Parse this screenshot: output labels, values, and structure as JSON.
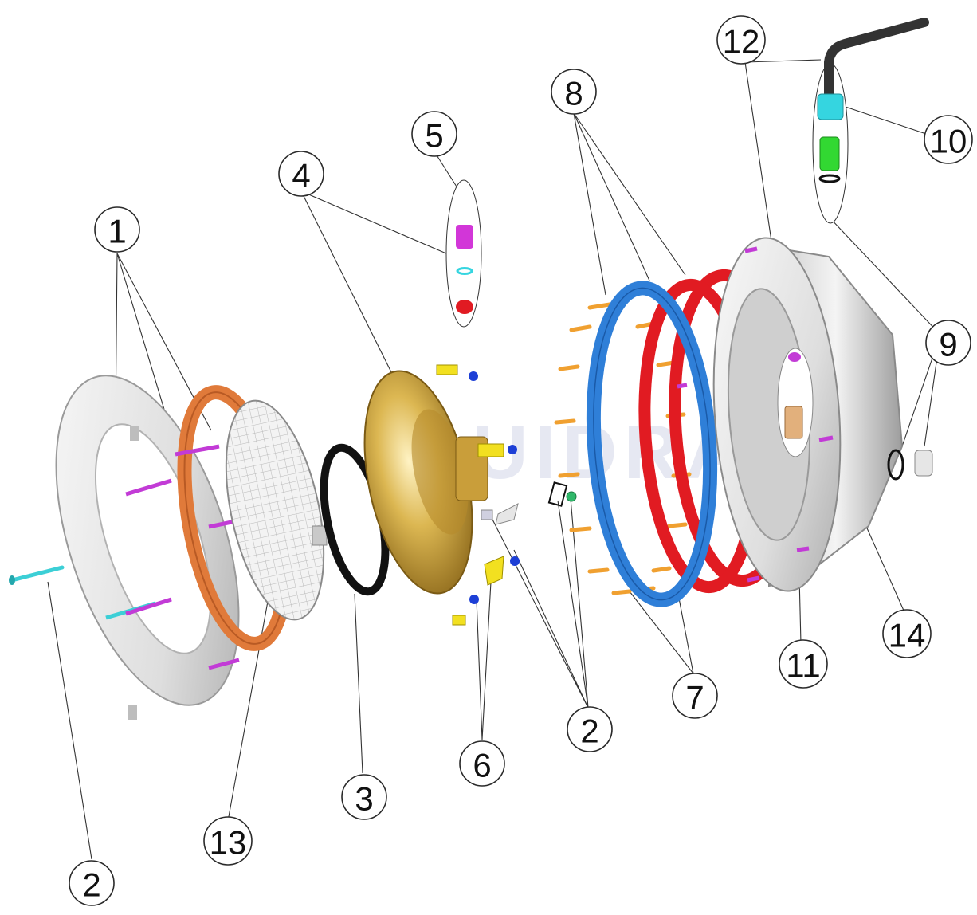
{
  "diagram": {
    "watermark": "FLUIDRA",
    "callouts": [
      {
        "id": "c1",
        "label": "1"
      },
      {
        "id": "c2a",
        "label": "2"
      },
      {
        "id": "c2b",
        "label": "2"
      },
      {
        "id": "c3",
        "label": "3"
      },
      {
        "id": "c4",
        "label": "4"
      },
      {
        "id": "c5",
        "label": "5"
      },
      {
        "id": "c6",
        "label": "6"
      },
      {
        "id": "c7",
        "label": "7"
      },
      {
        "id": "c8",
        "label": "8"
      },
      {
        "id": "c9",
        "label": "9"
      },
      {
        "id": "c10",
        "label": "10"
      },
      {
        "id": "c11",
        "label": "11"
      },
      {
        "id": "c12",
        "label": "12"
      },
      {
        "id": "c13",
        "label": "13"
      },
      {
        "id": "c14",
        "label": "14"
      }
    ],
    "colors": {
      "front_ring": "#e9e9e9",
      "clamp_ring": "#e07a3a",
      "gasket": "#111111",
      "brass_niche": "#d8b24a",
      "blue_gasket": "#2f7fd8",
      "red_gasket": "#e11b22",
      "screw_magenta": "#c23bd6",
      "screw_cyan": "#3ccfd6",
      "screw_orange": "#f0a030",
      "clip_yellow": "#f2e020",
      "nut_blue": "#1d3fd6",
      "cable_sleeve_cyan": "#35d5e0",
      "cable_gland_green": "#32d832",
      "cable": "#333333"
    }
  }
}
